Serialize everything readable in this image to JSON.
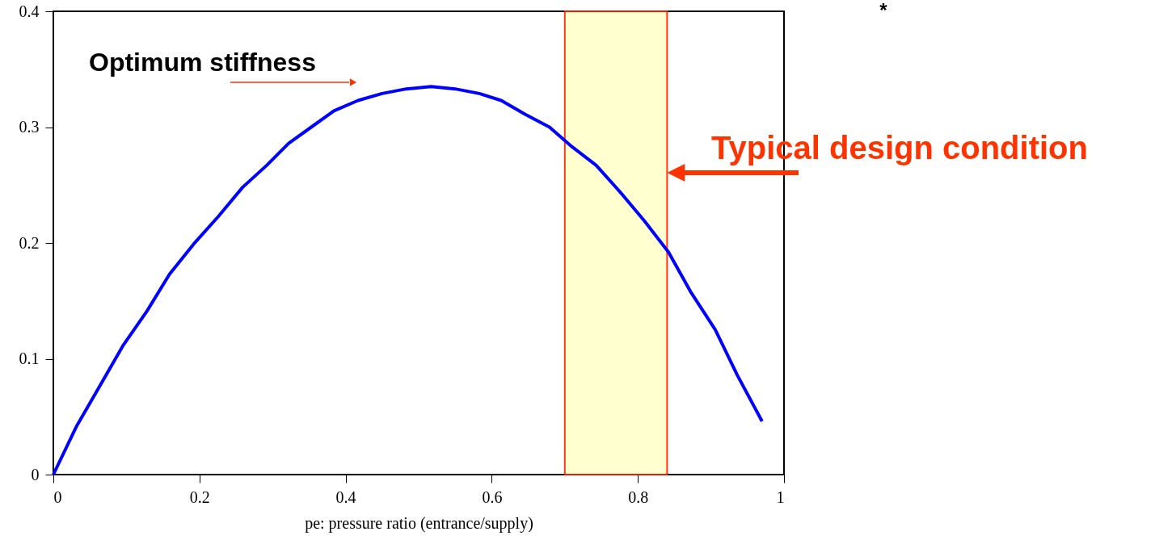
{
  "chart_data": {
    "type": "line",
    "xlabel": "pe: pressure ratio (entrance/supply)",
    "xlim": [
      0,
      1
    ],
    "xticks": [
      0,
      0.2,
      0.4,
      0.6,
      0.8,
      1
    ],
    "ylim": [
      0,
      0.4
    ],
    "yticks": [
      0,
      0.1,
      0.2,
      0.3,
      0.4
    ],
    "x": [
      0,
      0.032,
      0.065,
      0.095,
      0.128,
      0.159,
      0.192,
      0.226,
      0.259,
      0.292,
      0.322,
      0.353,
      0.384,
      0.417,
      0.45,
      0.483,
      0.517,
      0.55,
      0.583,
      0.613,
      0.646,
      0.679,
      0.71,
      0.743,
      0.777,
      0.809,
      0.842,
      0.873,
      0.906,
      0.936,
      0.97
    ],
    "series": [
      {
        "color": "#0000ff",
        "values": [
          0,
          0.042,
          0.078,
          0.111,
          0.141,
          0.173,
          0.199,
          0.223,
          0.248,
          0.267,
          0.286,
          0.3,
          0.314,
          0.323,
          0.329,
          0.333,
          0.335,
          0.333,
          0.329,
          0.323,
          0.311,
          0.3,
          0.283,
          0.267,
          0.243,
          0.219,
          0.192,
          0.157,
          0.125,
          0.086,
          0.046
        ]
      }
    ],
    "bands": [
      {
        "axis": "x",
        "from": 0.7,
        "to": 0.84,
        "label": "Typical design condition",
        "color": "#ffffcc"
      }
    ],
    "annotations": [
      "Optimum stiffness",
      "*"
    ],
    "grid": false,
    "marker": "none",
    "line_style": "solid"
  }
}
